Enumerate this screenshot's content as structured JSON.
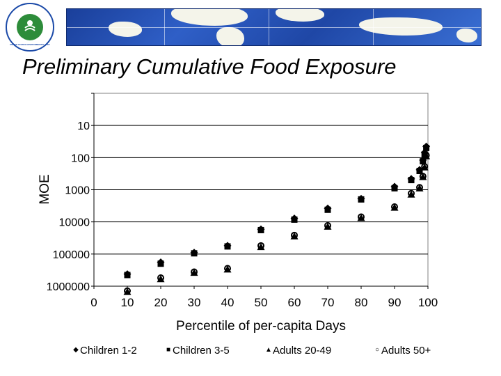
{
  "slide": {
    "title": "Preliminary Cumulative Food Exposure",
    "logo_alt": "EPA seal",
    "logo_text": "UNITED STATES ENVIRONMENTAL PROTECTION AGENCY"
  },
  "chart_data": {
    "type": "scatter",
    "title": "",
    "xlabel": "Percentile of per-capita Days",
    "ylabel": "MOE",
    "xlim": [
      0,
      100
    ],
    "x_ticks": [
      "0",
      "10",
      "20",
      "30",
      "40",
      "50",
      "60",
      "70",
      "80",
      "90",
      "100"
    ],
    "y_scale": "log",
    "y_inverted": true,
    "y_ticks": [
      "10",
      "100",
      "1000",
      "10000",
      "100000",
      "1000000"
    ],
    "y_tick_values": [
      10,
      100,
      1000,
      10000,
      100000,
      1000000
    ],
    "series": [
      {
        "name": "Children 1-2",
        "marker": "diamond",
        "x": [
          10,
          20,
          30,
          40,
          50,
          60,
          70,
          80,
          90,
          95,
          97.5,
          98.5,
          99,
          99.5
        ],
        "y": [
          420000,
          180000,
          90000,
          55000,
          17000,
          7800,
          3800,
          1900,
          800,
          460,
          240,
          120,
          70,
          45
        ]
      },
      {
        "name": "Children 3-5",
        "marker": "square",
        "x": [
          10,
          20,
          30,
          40,
          50,
          60,
          70,
          80,
          90,
          95,
          97.5,
          98.5,
          99,
          99.5
        ],
        "y": [
          450000,
          200000,
          95000,
          58000,
          18000,
          8500,
          4200,
          2000,
          900,
          500,
          260,
          130,
          80,
          50
        ]
      },
      {
        "name": "Adults 20-49",
        "marker": "triangle",
        "x": [
          10,
          20,
          30,
          40,
          50,
          60,
          70,
          80,
          90,
          95,
          97.5,
          98.5,
          99,
          99.5
        ],
        "y": [
          1500000,
          600000,
          380000,
          300000,
          60000,
          28000,
          14000,
          7500,
          3600,
          1400,
          900,
          400,
          200,
          90
        ]
      },
      {
        "name": "Adults 50+",
        "marker": "circle",
        "x": [
          10,
          20,
          30,
          40,
          50,
          60,
          70,
          80,
          90,
          95,
          97.5,
          98.5,
          99,
          99.5
        ],
        "y": [
          1400000,
          550000,
          360000,
          280000,
          55000,
          26000,
          13000,
          7000,
          3400,
          1300,
          850,
          380,
          190,
          85
        ]
      }
    ],
    "legend": [
      "Children 1-2",
      "Children 3-5",
      "Adults 20-49",
      "Adults 50+"
    ],
    "legend_position": "bottom",
    "grid": true
  }
}
